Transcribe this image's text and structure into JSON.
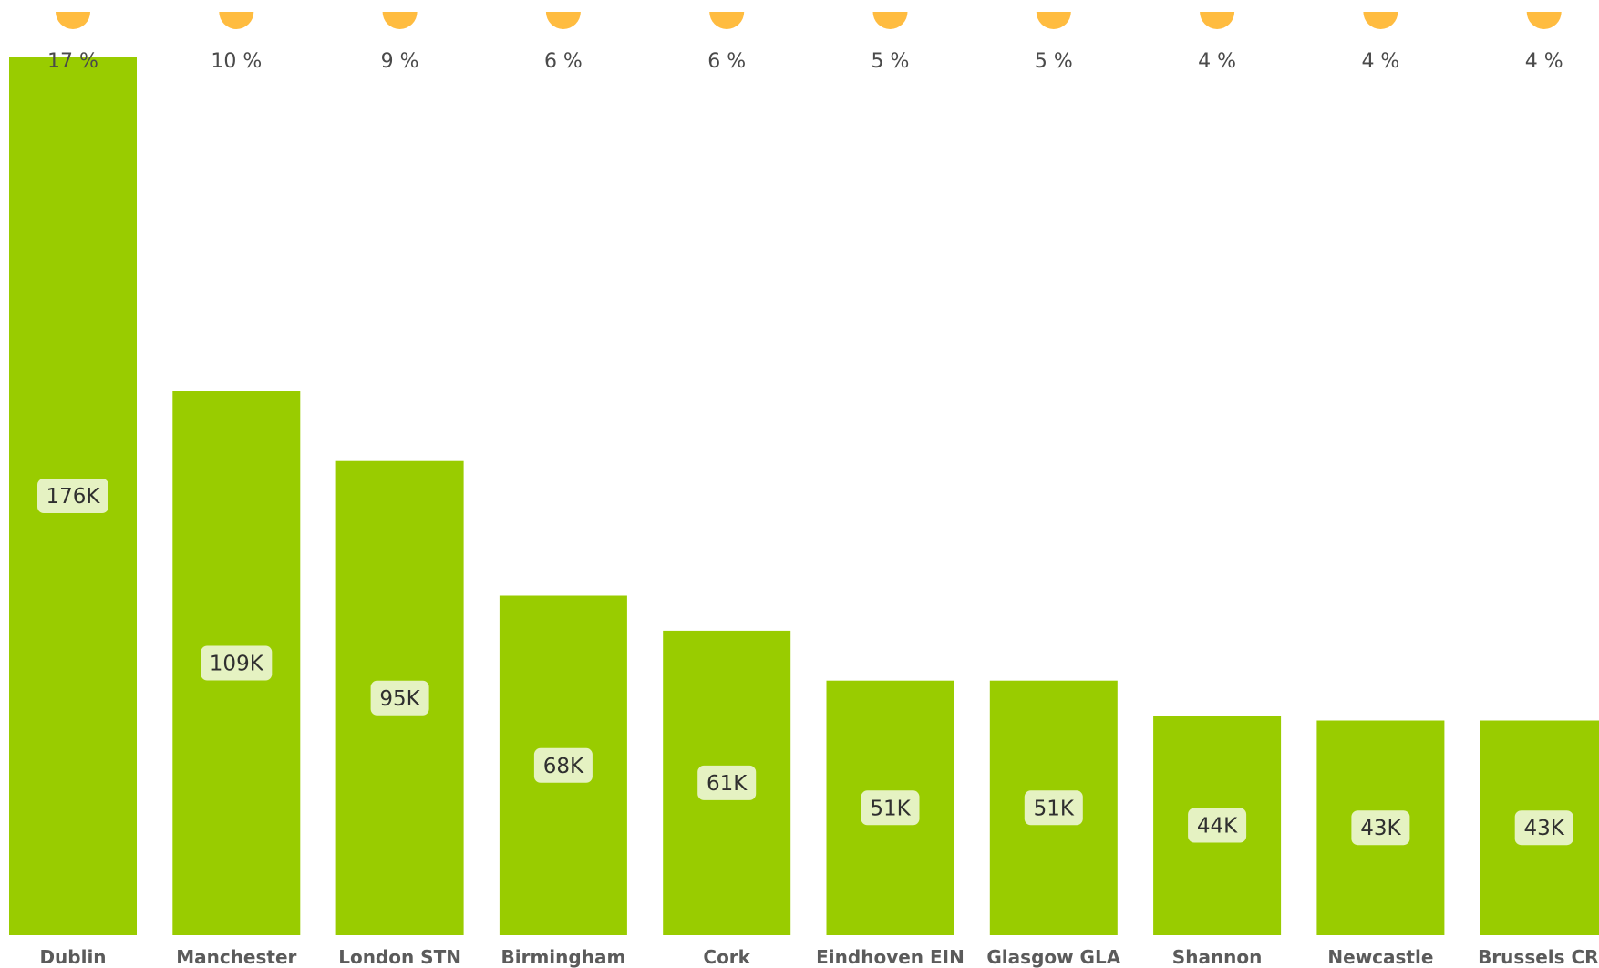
{
  "colors": {
    "bar": "#99cc00",
    "pct_marker": "#ffbc40",
    "value_label_bg": "#e5f2c2",
    "value_label_text": "#2f2f2f",
    "pct_label_text": "#4a4a4a",
    "category_label_text": "#5b5b5b",
    "background": "#ffffff"
  },
  "chart_data": {
    "type": "bar",
    "title": "",
    "xlabel": "",
    "ylabel": "",
    "grid": false,
    "legend": "none",
    "ylim": [
      0,
      176
    ],
    "categories": [
      "Dublin",
      "Manchester",
      "London STN",
      "Birmingham",
      "Cork",
      "Eindhoven EIN",
      "Glasgow GLA",
      "Shannon",
      "Newcastle",
      "Brussels CRL"
    ],
    "values": [
      176,
      109,
      95,
      68,
      61,
      51,
      51,
      44,
      43,
      43
    ],
    "value_labels": [
      "176K",
      "109K",
      "95K",
      "68K",
      "61K",
      "51K",
      "51K",
      "44K",
      "43K",
      "43K"
    ],
    "percent_labels": [
      "17 %",
      "10 %",
      "9 %",
      "6 %",
      "6 %",
      "5 %",
      "5 %",
      "4 %",
      "4 %",
      "4 %"
    ],
    "percent_values": [
      17,
      10,
      9,
      6,
      6,
      5,
      5,
      4,
      4,
      4
    ]
  }
}
